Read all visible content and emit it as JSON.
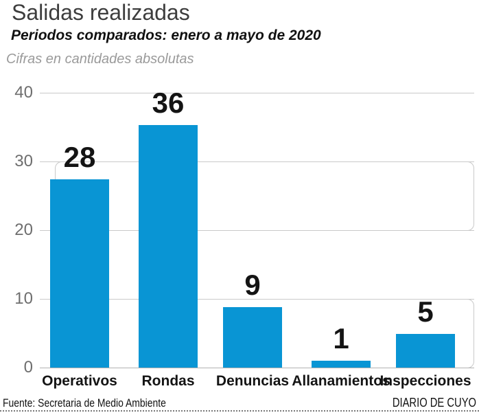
{
  "header": {
    "title": "Salidas realizadas",
    "subtitle": "Periodos comparados: enero a mayo de 2020",
    "note": "Cifras en cantidades absolutas"
  },
  "chart_data": {
    "type": "bar",
    "title": "Salidas realizadas",
    "subtitle": "Periodos comparados: enero a mayo de 2020",
    "annotation": "Cifras en cantidades absolutas",
    "categories": [
      "Operativos",
      "Rondas",
      "Denuncias",
      "Allanamientos",
      "Inspecciones"
    ],
    "values": [
      28,
      36,
      9,
      1,
      5
    ],
    "xlabel": "",
    "ylabel": "",
    "ylim": [
      0,
      40
    ],
    "yticks": [
      0,
      10,
      20,
      30,
      40
    ],
    "grid": true,
    "legend": false,
    "value_labels_shown": true
  },
  "colors": {
    "bar": "#0995d4",
    "grid": "#c9c9c9",
    "axis_label": "#6e6e6e",
    "title": "#3d3d3d",
    "note": "#9a9a9a",
    "text": "#141414"
  },
  "footer": {
    "source": "Fuente: Secretaria de Medio Ambiente",
    "credit": "DIARIO DE CUYO"
  }
}
